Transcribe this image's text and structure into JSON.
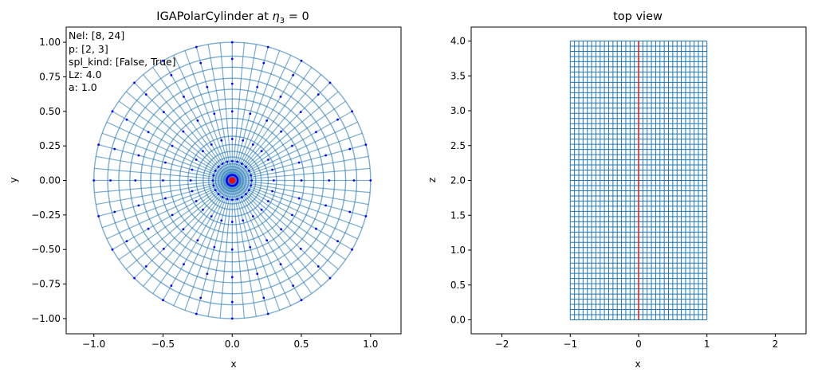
{
  "chart_data": [
    {
      "type": "scatter",
      "panel": "left",
      "title_text": "IGAPolarCylinder at ",
      "title_math": "η",
      "title_sub": "3",
      "title_tail": " = 0",
      "xlabel": "x",
      "ylabel": "y",
      "xlim": [
        -1.2,
        1.22
      ],
      "ylim": [
        -1.11,
        1.11
      ],
      "x_ticks": [
        -1.0,
        -0.5,
        0.0,
        0.5,
        1.0
      ],
      "x_tick_labels": [
        "−1.0",
        "−0.5",
        "0.0",
        "0.5",
        "1.0"
      ],
      "y_ticks": [
        -1.0,
        -0.75,
        -0.5,
        -0.25,
        0.0,
        0.25,
        0.5,
        0.75,
        1.0
      ],
      "y_tick_labels": [
        "−1.00",
        "−0.75",
        "−0.50",
        "−0.25",
        "0.00",
        "0.25",
        "0.50",
        "0.75",
        "1.00"
      ],
      "info_lines": [
        "Nel: [8, 24]",
        "p: [2, 3]",
        "spl_kind: [False, True]",
        "Lz: 4.0",
        "a: 1.0"
      ],
      "grid_radii": [
        0.02,
        0.04,
        0.06,
        0.08,
        0.1,
        0.12,
        0.14,
        0.17,
        0.21,
        0.26,
        0.32,
        0.38,
        0.45,
        0.52,
        0.59,
        0.66,
        0.74,
        0.82,
        0.9,
        1.0
      ],
      "grid_spokes": 72,
      "control_point_radii": [
        0.04,
        0.14,
        0.3,
        0.5,
        0.7,
        0.88,
        1.0
      ],
      "control_point_angles": 24,
      "colors": {
        "mesh": "#1f77b4",
        "points": "#0000ff",
        "center": "#ff0000"
      }
    },
    {
      "type": "line",
      "panel": "right",
      "title": "top view",
      "xlabel": "x",
      "ylabel": "z",
      "xlim": [
        -2.45,
        2.45
      ],
      "ylim": [
        -0.2,
        4.2
      ],
      "x_ticks": [
        -2,
        -1,
        0,
        1,
        2
      ],
      "x_tick_labels": [
        "−2",
        "−1",
        "0",
        "1",
        "2"
      ],
      "y_ticks": [
        0.0,
        0.5,
        1.0,
        1.5,
        2.0,
        2.5,
        3.0,
        3.5,
        4.0
      ],
      "y_tick_labels": [
        "0.0",
        "0.5",
        "1.0",
        "1.5",
        "2.0",
        "2.5",
        "3.0",
        "3.5",
        "4.0"
      ],
      "mesh_x_range": [
        -1,
        1
      ],
      "mesh_z_range": [
        0,
        4
      ],
      "mesh_x_lines": 33,
      "mesh_z_lines": 55,
      "axis_line_x": 0,
      "colors": {
        "mesh": "#1f77b4",
        "axis": "#d62728"
      }
    }
  ]
}
